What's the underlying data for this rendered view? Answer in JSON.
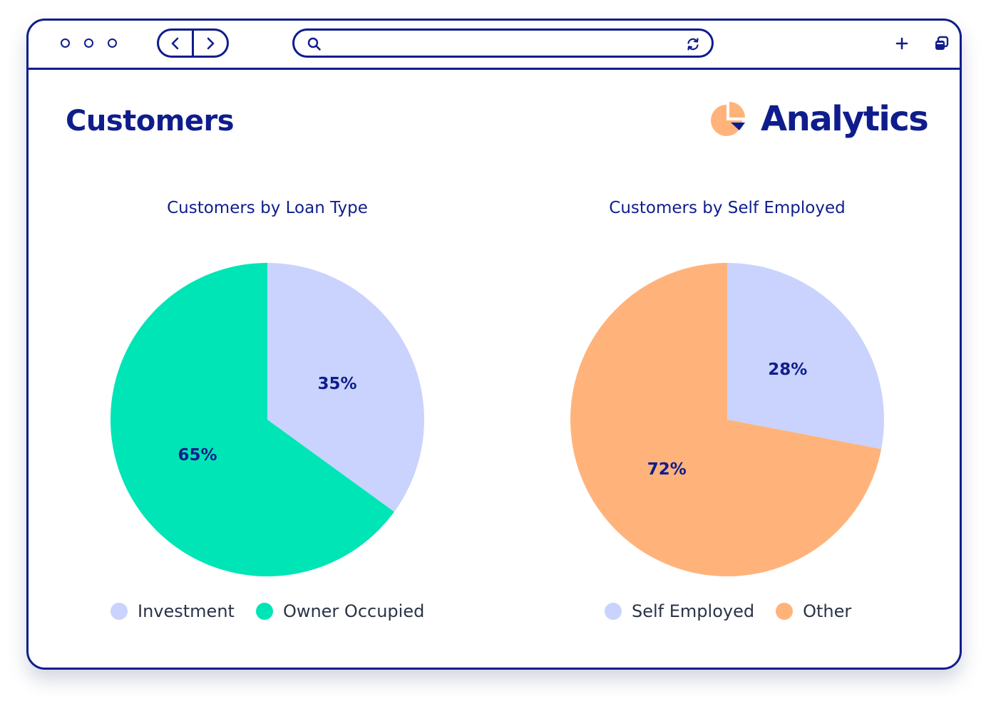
{
  "window": {
    "address_value": "",
    "colors": {
      "frame": "#0f1d8c"
    }
  },
  "page": {
    "title": "Customers"
  },
  "logo": {
    "text": "Analytics",
    "icon": "pie-chart-icon"
  },
  "chart_data": [
    {
      "type": "pie",
      "title": "Customers by Loan Type",
      "categories": [
        "Investment",
        "Owner Occupied"
      ],
      "values": [
        35,
        65
      ],
      "labels": [
        "35%",
        "65%"
      ],
      "colors": [
        "#c9d3fd",
        "#00e5b6"
      ],
      "legend_position": "bottom"
    },
    {
      "type": "pie",
      "title": "Customers by Self Employed",
      "categories": [
        "Self Employed",
        "Other"
      ],
      "values": [
        28,
        72
      ],
      "labels": [
        "28%",
        "72%"
      ],
      "colors": [
        "#c9d3fd",
        "#ffb37b"
      ],
      "legend_position": "bottom"
    }
  ]
}
